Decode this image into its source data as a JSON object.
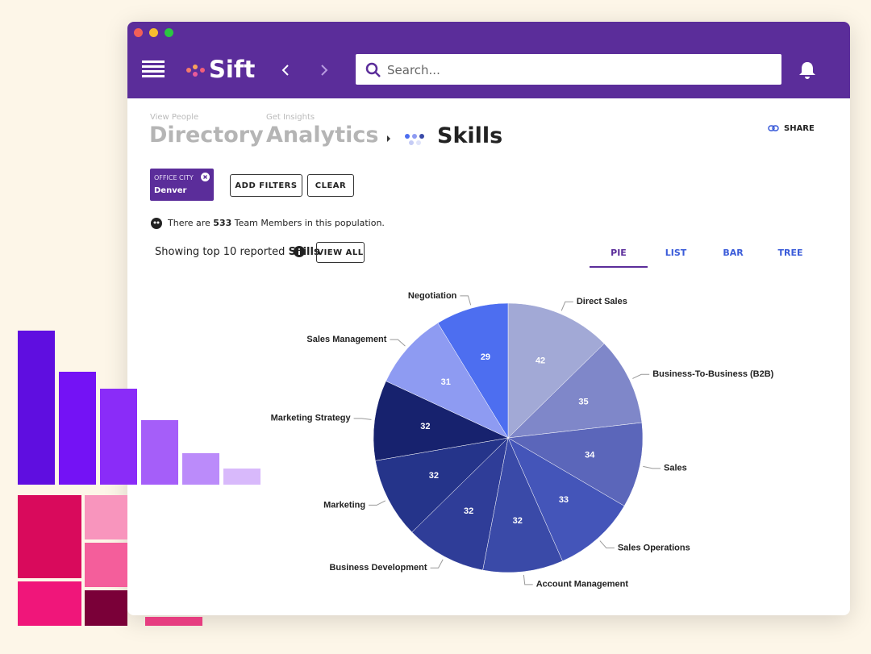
{
  "header": {
    "app_name": "Sift",
    "search_placeholder": "Search..."
  },
  "breadcrumbs": [
    {
      "caption": "View People",
      "label": "Directory"
    },
    {
      "caption": "Get Insights",
      "label": "Analytics"
    }
  ],
  "current_page": "Skills",
  "share": "SHARE",
  "filters": [
    {
      "field": "OFFICE CITY",
      "value": "Denver"
    }
  ],
  "buttons": {
    "add_filters": "ADD FILTERS",
    "clear": "CLEAR"
  },
  "population": {
    "prefix": "There are",
    "count": 533,
    "suffix": "Team Members in this population."
  },
  "summary": {
    "prefix": "Showing top",
    "count": 10,
    "middle": "reported",
    "subject": "Skills",
    "view_all": "VIEW ALL"
  },
  "tabs": [
    "PIE",
    "LIST",
    "BAR",
    "TREE"
  ],
  "active_tab": 0,
  "chart_data": {
    "type": "pie",
    "categories": [
      "Direct Sales",
      "Business-To-Business (B2B)",
      "Sales",
      "Sales Operations",
      "Account Management",
      "Business Development",
      "Marketing",
      "Marketing Strategy",
      "Sales Management",
      "Negotiation"
    ],
    "values": [
      42,
      35,
      34,
      33,
      32,
      32,
      32,
      32,
      31,
      29
    ],
    "colors": [
      "#a2a9d6",
      "#7f87c9",
      "#5b66ba",
      "#4455b9",
      "#3a4aa8",
      "#2f3d98",
      "#25348a",
      "#17226e",
      "#8e9bf2",
      "#4d6ef0"
    ]
  }
}
